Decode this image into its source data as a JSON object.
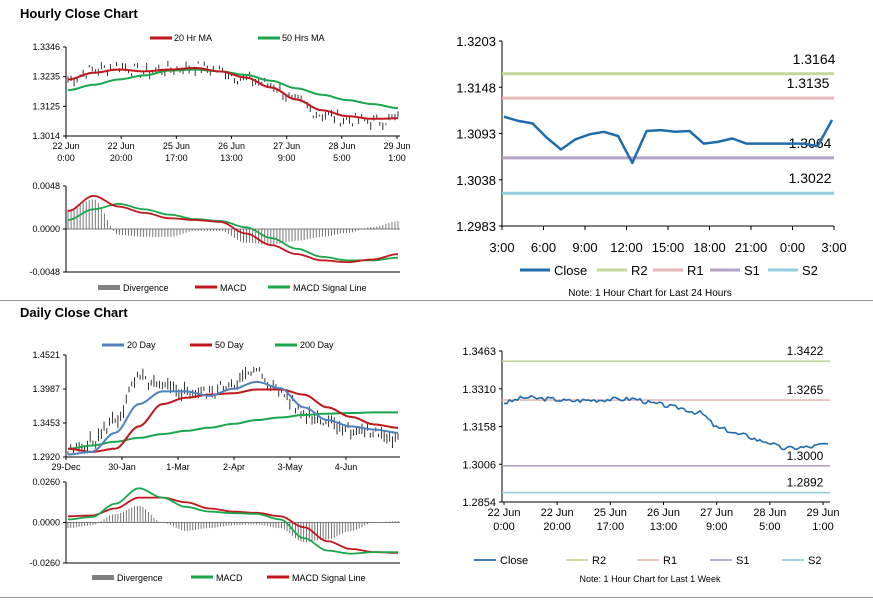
{
  "sections": {
    "hourly_title": "Hourly Close Chart",
    "daily_title": "Daily Close Chart"
  },
  "colors": {
    "red": "#c0161c",
    "green": "#1aa64a",
    "blue": "#4f81bd",
    "close_blue": "#1f6cad",
    "r2": "#c4d79b",
    "r1": "#e6b8b7",
    "s1": "#b3a2c7",
    "s2": "#92cddc",
    "gray": "#808080"
  },
  "chart_data": [
    {
      "id": "hourly-price",
      "type": "line",
      "legend": [
        "20 Hr MA",
        "50 Hrs MA"
      ],
      "yticks": [
        "1.3346",
        "1.3235",
        "1.3125",
        "1.3014"
      ],
      "xticks": [
        [
          "22 Jun",
          "0:00"
        ],
        [
          "22 Jun",
          "20:00"
        ],
        [
          "25 Jun",
          "17:00"
        ],
        [
          "26 Jun",
          "13:00"
        ],
        [
          "27 Jun",
          "9:00"
        ],
        [
          "28 Jun",
          "5:00"
        ],
        [
          "29 Jun",
          "1:00"
        ]
      ],
      "ylim": [
        1.3014,
        1.3346
      ]
    },
    {
      "id": "hourly-macd",
      "type": "line",
      "legend": [
        "Divergence",
        "MACD",
        "MACD Signal Line"
      ],
      "yticks": [
        "0.0048",
        "0.0000",
        "-0.0048"
      ],
      "ylim": [
        -0.0048,
        0.0048
      ]
    },
    {
      "id": "hourly-pivot",
      "type": "line",
      "yticks": [
        "1.3203",
        "1.3148",
        "1.3093",
        "1.3038",
        "1.2983"
      ],
      "xticks": [
        "3:00",
        "6:00",
        "9:00",
        "12:00",
        "15:00",
        "18:00",
        "21:00",
        "0:00",
        "3:00"
      ],
      "ylim": [
        1.2983,
        1.3203
      ],
      "levels": [
        {
          "name": "R2",
          "value": 1.3164,
          "label": "1.3164"
        },
        {
          "name": "R1",
          "value": 1.3135,
          "label": "1.3135"
        },
        {
          "name": "S1",
          "value": 1.3064,
          "label": "1.3064"
        },
        {
          "name": "S2",
          "value": 1.3022,
          "label": "1.3022"
        }
      ],
      "close": [
        1.3113,
        1.3108,
        1.3105,
        1.3088,
        1.3074,
        1.3086,
        1.3092,
        1.3095,
        1.309,
        1.3058,
        1.3096,
        1.3097,
        1.3095,
        1.3096,
        1.3081,
        1.3083,
        1.3087,
        1.3081,
        1.3081,
        1.3081,
        1.3081,
        1.3081,
        1.3078,
        1.3109
      ],
      "legend": [
        "Close",
        "R2",
        "R1",
        "S1",
        "S2"
      ],
      "note": "Note: 1 Hour Chart for Last 24 Hours"
    },
    {
      "id": "daily-price",
      "type": "line",
      "legend": [
        "20 Day",
        "50 Day",
        "200 Day"
      ],
      "yticks": [
        "1.4521",
        "1.3987",
        "1.3453",
        "1.2920"
      ],
      "xticks": [
        "29-Dec",
        "30-Jan",
        "1-Mar",
        "2-Apr",
        "3-May",
        "4-Jun"
      ],
      "ylim": [
        1.292,
        1.4521
      ]
    },
    {
      "id": "daily-macd",
      "type": "line",
      "legend": [
        "Divergence",
        "MACD",
        "MACD Signal Line"
      ],
      "yticks": [
        "0.0260",
        "0.0000",
        "-0.0260"
      ],
      "ylim": [
        -0.026,
        0.026
      ]
    },
    {
      "id": "weekly-pivot",
      "type": "line",
      "yticks": [
        "1.3463",
        "1.3310",
        "1.3158",
        "1.3006",
        "1.2854"
      ],
      "xticks": [
        [
          "22 Jun",
          "0:00"
        ],
        [
          "22 Jun",
          "20:00"
        ],
        [
          "25 Jun",
          "17:00"
        ],
        [
          "26 Jun",
          "13:00"
        ],
        [
          "27 Jun",
          "9:00"
        ],
        [
          "28 Jun",
          "5:00"
        ],
        [
          "29 Jun",
          "1:00"
        ]
      ],
      "ylim": [
        1.2854,
        1.3463
      ],
      "levels": [
        {
          "name": "R2",
          "value": 1.3422,
          "label": "1.3422"
        },
        {
          "name": "R1",
          "value": 1.3265,
          "label": "1.3265"
        },
        {
          "name": "S1",
          "value": 1.3,
          "label": "1.3000"
        },
        {
          "name": "S2",
          "value": 1.2892,
          "label": "1.2892"
        }
      ],
      "legend": [
        "Close",
        "R2",
        "R1",
        "S1",
        "S2"
      ],
      "note": "Note: 1 Hour Chart for Last 1 Week"
    }
  ]
}
